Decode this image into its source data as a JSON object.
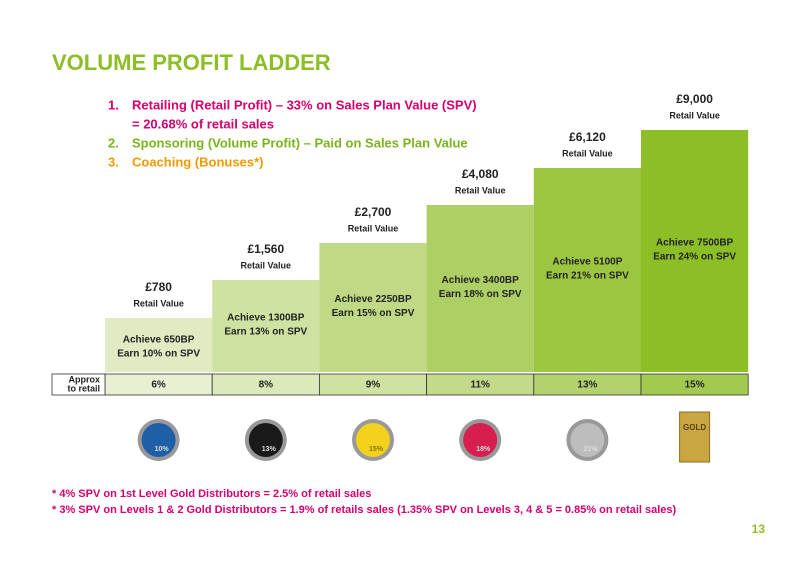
{
  "header": {
    "title": "VOLUME PROFIT LADDER"
  },
  "list": [
    {
      "number": "1.",
      "lines": [
        "Retailing (Retail Profit) – 33% on Sales Plan Value (SPV)",
        "= 20.68% of retail sales"
      ]
    },
    {
      "number": "2.",
      "lines": [
        "Sponsoring (Volume Profit) – Paid on Sales Plan Value"
      ]
    },
    {
      "number": "3.",
      "lines": [
        "Coaching (Bonuses*)"
      ]
    }
  ],
  "steps": [
    {
      "value": "£780",
      "value_caption": "Retail Value",
      "lines": [
        "Achieve 650BP",
        "Earn 10% on SPV"
      ],
      "approx": "6%",
      "badge": "10%"
    },
    {
      "value": "£1,560",
      "value_caption": "Retail Value",
      "lines": [
        "Achieve 1300BP",
        "Earn 13% on SPV"
      ],
      "approx": "8%",
      "badge": "13%"
    },
    {
      "value": "£2,700",
      "value_caption": "Retail Value",
      "lines": [
        "Achieve 2250BP",
        "Earn 15% on SPV"
      ],
      "approx": "9%",
      "badge": "15%"
    },
    {
      "value": "£4,080",
      "value_caption": "Retail Value",
      "lines": [
        "Achieve 3400BP",
        "Earn 18% on SPV"
      ],
      "approx": "11%",
      "badge": "18%"
    },
    {
      "value": "£6,120",
      "value_caption": "Retail Value",
      "lines": [
        "Achieve 5100P",
        "Earn 21% on SPV"
      ],
      "approx": "13%",
      "badge": "21%"
    },
    {
      "value": "£9,000",
      "value_caption": "Retail Value",
      "lines": [
        "Achieve 7500BP",
        "Earn 24% on SPV"
      ],
      "approx": "15%",
      "badge": "GOLD"
    }
  ],
  "approx_label": [
    "Approx",
    "to retail"
  ],
  "footnotes": [
    "*  4% SPV on 1st Level Gold Distributors = 2.5% of retail sales",
    "*  3% SPV on Levels 1 & 2 Gold Distributors = 1.9% of retails sales (1.35% SPV on Levels 3, 4 & 5 = 0.85% on retail sales)"
  ],
  "page_number": "13"
}
